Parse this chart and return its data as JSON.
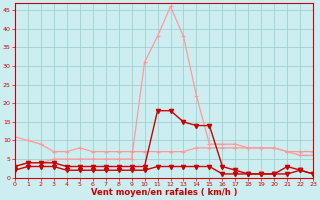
{
  "x": [
    0,
    1,
    2,
    3,
    4,
    5,
    6,
    7,
    8,
    9,
    10,
    11,
    12,
    13,
    14,
    15,
    16,
    17,
    18,
    19,
    20,
    21,
    22,
    23
  ],
  "light_high": [
    3,
    4,
    4,
    5,
    5,
    5,
    5,
    5,
    5,
    5,
    31,
    38,
    46,
    38,
    22,
    9,
    9,
    9,
    8,
    8,
    8,
    7,
    6,
    6
  ],
  "light_low": [
    11,
    10,
    9,
    7,
    7,
    8,
    7,
    7,
    7,
    7,
    7,
    7,
    7,
    7,
    8,
    8,
    8,
    8,
    8,
    8,
    8,
    7,
    7,
    7
  ],
  "dark_rafales": [
    3,
    4,
    4,
    4,
    3,
    3,
    3,
    3,
    3,
    3,
    3,
    18,
    18,
    15,
    14,
    14,
    3,
    2,
    1,
    1,
    1,
    3,
    2,
    1
  ],
  "dark_moyen": [
    2,
    3,
    3,
    3,
    2,
    2,
    2,
    2,
    2,
    2,
    2,
    3,
    3,
    3,
    3,
    3,
    1,
    1,
    1,
    1,
    1,
    1,
    2,
    1
  ],
  "xlabel": "Vent moyen/en rafales ( km/h )",
  "bg_color": "#cceef0",
  "grid_color": "#99cccc",
  "dark_red": "#cc0000",
  "light_red": "#ff9999",
  "ylim": [
    0,
    47
  ],
  "xlim": [
    0,
    23
  ]
}
